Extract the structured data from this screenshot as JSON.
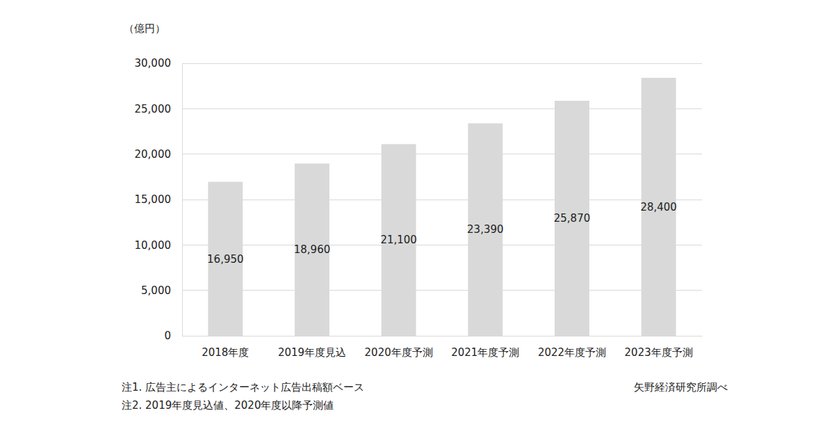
{
  "chart_data": {
    "type": "bar",
    "ylabel": "（億円）",
    "categories": [
      "2018年度",
      "2019年度見込",
      "2020年度予測",
      "2021年度予測",
      "2022年度予測",
      "2023年度予測"
    ],
    "values": [
      16950,
      18960,
      21100,
      23390,
      25870,
      28400
    ],
    "value_labels": [
      "16,950",
      "18,960",
      "21,100",
      "23,390",
      "25,870",
      "28,400"
    ],
    "data_labels": true,
    "color": "#d9d9d9",
    "ylim": [
      0,
      30000
    ],
    "yticks": [
      0,
      {
        "value": 5000,
        "label": "5,000"
      },
      {
        "value": 10000,
        "label": "10,000"
      },
      {
        "value": 15000,
        "label": "15,000"
      },
      {
        "value": 20000,
        "label": "20,000"
      },
      {
        "value": 25000,
        "label": "25,000"
      },
      {
        "value": 30000,
        "label": "30,000"
      }
    ],
    "grid": true,
    "annotations": [
      "注1. 広告主によるインターネット広告出稿額ベース",
      "注2. 2019年度見込値、2020年度以降予測値"
    ],
    "source": "矢野経済研究所調べ"
  }
}
